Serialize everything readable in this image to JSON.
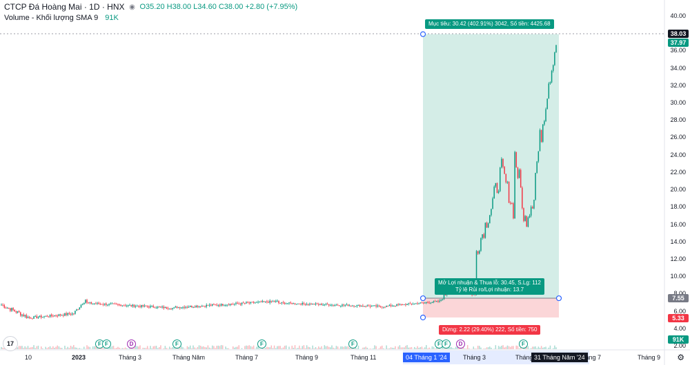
{
  "legend": {
    "title": "CTCP Đá Hoàng Mai · 1D · HNX",
    "ohlc": "O35.20 H38.00 L34.60 C38.00 +2.80 (+7.95%)",
    "volume_label": "Volume - Khối lượng SMA 9",
    "volume_value": "91K"
  },
  "y_axis": [
    "40.00",
    "38.00",
    "36.00",
    "34.00",
    "32.00",
    "30.00",
    "28.00",
    "26.00",
    "24.00",
    "22.00",
    "20.00",
    "18.00",
    "16.00",
    "14.00",
    "12.00",
    "10.00",
    "8.00",
    "6.00",
    "4.00",
    "2.00"
  ],
  "x_axis": [
    "10",
    "2023",
    "Tháng 3",
    "Tháng Năm",
    "Tháng 7",
    "Tháng 9",
    "Tháng 11",
    "Tháng 3",
    "Tháng Năm",
    "Tháng 7",
    "Tháng 9"
  ],
  "x_highlight_left": "04 Tháng 1 '24",
  "x_highlight_right": "31 Tháng Năm '24",
  "badges": {
    "last_price": "38.03",
    "target": "37.97",
    "entry": "7.55",
    "stop": "5.33",
    "volume": "91K"
  },
  "position": {
    "target_note": "Mục tiêu: 30.42 (402.91%) 3042, Số tiền: 4425.68",
    "open_pl_line1": "Mở Lợi nhuận & Thua lỗ: 30.45, S.Lg: 112",
    "open_pl_line2": "Tỷ lệ Rủi ro/Lợi nhuận: 13.7",
    "stop_note": "Dừng: 2.22 (29.40%) 222, Số tiền: 750"
  },
  "events": [
    "F",
    "F",
    "D",
    "F",
    "F",
    "F",
    "F",
    "F",
    "D",
    "F"
  ],
  "tv_logo": "17",
  "colors": {
    "up": "#089981",
    "down": "#f23645",
    "profit_zone": "#cdeae3",
    "loss_zone": "#fbd2d4",
    "badge_dark": "#131722",
    "badge_green": "#089981",
    "badge_gray": "#787b86",
    "badge_red": "#f23645",
    "highlight_blue": "#2962ff"
  },
  "chart_data": {
    "type": "candlestick",
    "price_ylim": [
      2,
      40
    ],
    "last": {
      "open": 35.2,
      "high": 38.0,
      "low": 34.6,
      "close": 38.0,
      "change": 2.8,
      "change_pct": 7.95
    },
    "position": {
      "entry": 7.55,
      "target": 37.97,
      "stop": 5.33
    },
    "phases": [
      {
        "label": "2022-10 to 2023-01",
        "price_range": [
          5.0,
          7.0
        ]
      },
      {
        "label": "2023-02 to 2023-12",
        "price_range": [
          6.2,
          7.8
        ]
      },
      {
        "label": "2024-01",
        "price_range": [
          7.5,
          10.0
        ]
      },
      {
        "label": "2024-03",
        "price_range": [
          12.0,
          23.0
        ]
      },
      {
        "label": "2024-04",
        "price_range": [
          15.0,
          28.0
        ]
      },
      {
        "label": "2024-05",
        "price_range": [
          22.0,
          38.0
        ]
      }
    ]
  }
}
